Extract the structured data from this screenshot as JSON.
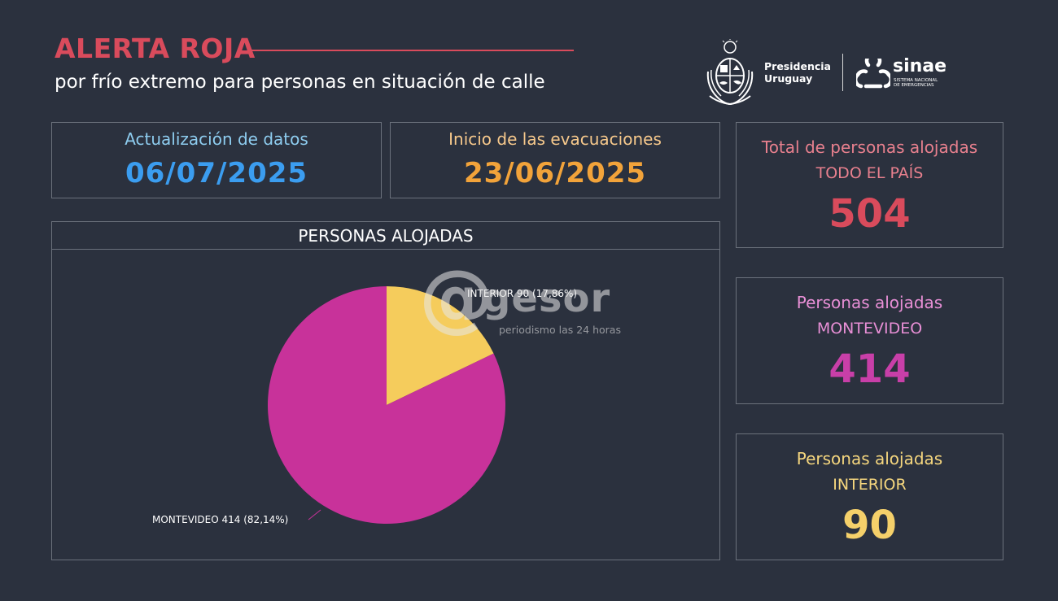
{
  "header": {
    "title": "ALERTA ROJA",
    "subtitle": "por frío extremo para personas en situación de calle"
  },
  "logos": {
    "presidencia_line1": "Presidencia",
    "presidencia_line2": "Uruguay",
    "sinae_word": "sinae",
    "sinae_sub_line1": "SISTEMA NACIONAL",
    "sinae_sub_line2": "DE EMERGENCIAS",
    "icons": [
      "coat-of-arms-icon",
      "sinae-logo-icon"
    ]
  },
  "update_panel": {
    "label": "Actualización de datos",
    "value": "06/07/2025"
  },
  "start_panel": {
    "label": "Inicio de las evacuaciones",
    "value": "23/06/2025"
  },
  "stats": {
    "total": {
      "label": "Total de personas alojadas",
      "sub": "TODO EL PAÍS",
      "value": "504"
    },
    "montevideo": {
      "label": "Personas alojadas",
      "sub": "MONTEVIDEO",
      "value": "414"
    },
    "interior": {
      "label": "Personas alojadas",
      "sub": "INTERIOR",
      "value": "90"
    }
  },
  "watermark": {
    "at": "@",
    "word": "gesor",
    "tagline": "periodismo las 24 horas"
  },
  "colors": {
    "background": "#2b313e",
    "title_red": "#d94b5c",
    "update_label": "#8ecdf0",
    "update_value": "#3b9df0",
    "start_label": "#f7c98c",
    "start_value": "#f2a33a",
    "total_label": "#e8808e",
    "total_value": "#d94b5c",
    "mvd_label": "#e88fd6",
    "mvd_value": "#c83fa8",
    "int_label": "#f5d67e",
    "int_value": "#f5d06a",
    "pie_montevideo": "#c8329a",
    "pie_interior": "#f5cc5c"
  },
  "chart_data": {
    "type": "pie",
    "title": "PERSONAS ALOJADAS",
    "categories": [
      "MONTEVIDEO",
      "INTERIOR"
    ],
    "values": [
      414,
      90
    ],
    "percentages": [
      82.14,
      17.86
    ],
    "slice_labels": [
      "MONTEVIDEO 414 (82,14%)",
      "INTERIOR 90 (17,86%)"
    ],
    "colors": [
      "#c8329a",
      "#f5cc5c"
    ]
  }
}
